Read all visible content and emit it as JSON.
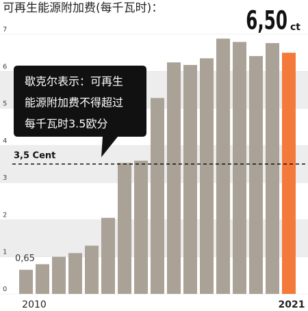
{
  "chart_data": {
    "type": "bar",
    "title": "可再生能源附加费(每千瓦时)：",
    "categories": [
      "2010",
      null,
      null,
      null,
      null,
      null,
      null,
      null,
      null,
      null,
      null,
      null,
      null,
      null,
      null,
      null,
      "2021"
    ],
    "values": [
      0.65,
      0.8,
      1.0,
      1.1,
      1.3,
      2.05,
      3.53,
      3.59,
      5.28,
      6.24,
      6.17,
      6.35,
      6.88,
      6.79,
      6.41,
      6.76,
      6.5
    ],
    "value_labels": [
      "0,65",
      null,
      null,
      null,
      null,
      null,
      null,
      null,
      null,
      null,
      null,
      null,
      null,
      null,
      null,
      null,
      "6,50"
    ],
    "unit": "ct",
    "color": "#aaa197",
    "highlight_color": "#f47a3c",
    "ylim": [
      0,
      7
    ],
    "yticks": [
      0,
      1,
      2,
      3,
      4,
      5,
      6,
      7
    ],
    "grid": true,
    "reference_line": {
      "value": 3.5,
      "label": "3,5 Cent"
    },
    "annotation": [
      "歇克尔表示：可再生",
      "能源附加费不得超过",
      "每千瓦时3.5欧分"
    ]
  }
}
